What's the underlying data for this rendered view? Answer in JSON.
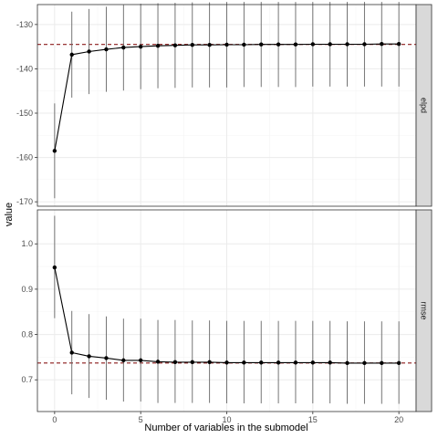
{
  "chart_data": [
    {
      "type": "line",
      "panel": "elpd",
      "strip_label": "elpd",
      "x": [
        0,
        1,
        2,
        3,
        4,
        5,
        6,
        7,
        8,
        9,
        10,
        11,
        12,
        13,
        14,
        15,
        16,
        17,
        18,
        19,
        20
      ],
      "y": [
        -158.5,
        -136.8,
        -136.1,
        -135.6,
        -135.2,
        -135.0,
        -134.8,
        -134.7,
        -134.6,
        -134.6,
        -134.55,
        -134.55,
        -134.5,
        -134.5,
        -134.5,
        -134.45,
        -134.45,
        -134.45,
        -134.45,
        -134.4,
        -134.4
      ],
      "lower": [
        -169.2,
        -146.5,
        -145.7,
        -145.2,
        -144.9,
        -144.6,
        -144.4,
        -144.3,
        -144.2,
        -144.2,
        -144.2,
        -144.1,
        -144.1,
        -144.1,
        -144.1,
        -144.0,
        -144.0,
        -144.0,
        -144.0,
        -144.0,
        -144.0
      ],
      "upper": [
        -147.8,
        -127.1,
        -126.5,
        -126.0,
        -125.6,
        -125.3,
        -125.2,
        -125.1,
        -125.0,
        -125.0,
        -124.9,
        -124.9,
        -124.9,
        -124.9,
        -124.9,
        -124.9,
        -124.9,
        -124.9,
        -124.9,
        -124.9,
        -124.9
      ],
      "reference": -134.5,
      "ylim": [
        -171,
        -125.5
      ],
      "yticks": [
        -170,
        -160,
        -150,
        -140,
        -130
      ],
      "xlim": [
        -1,
        21
      ],
      "xticks": [
        0,
        5,
        10,
        15,
        20
      ],
      "grid": true
    },
    {
      "type": "line",
      "panel": "rmse",
      "strip_label": "rmse",
      "x": [
        0,
        1,
        2,
        3,
        4,
        5,
        6,
        7,
        8,
        9,
        10,
        11,
        12,
        13,
        14,
        15,
        16,
        17,
        18,
        19,
        20
      ],
      "y": [
        0.948,
        0.76,
        0.752,
        0.748,
        0.743,
        0.743,
        0.74,
        0.739,
        0.739,
        0.739,
        0.738,
        0.738,
        0.738,
        0.738,
        0.738,
        0.738,
        0.738,
        0.737,
        0.737,
        0.737,
        0.737
      ],
      "lower": [
        0.836,
        0.668,
        0.66,
        0.656,
        0.652,
        0.652,
        0.649,
        0.649,
        0.649,
        0.649,
        0.648,
        0.648,
        0.648,
        0.648,
        0.648,
        0.648,
        0.648,
        0.647,
        0.647,
        0.647,
        0.647
      ],
      "upper": [
        1.062,
        0.852,
        0.845,
        0.84,
        0.835,
        0.835,
        0.832,
        0.832,
        0.831,
        0.831,
        0.83,
        0.83,
        0.83,
        0.83,
        0.83,
        0.83,
        0.83,
        0.829,
        0.829,
        0.829,
        0.829
      ],
      "reference": 0.737,
      "ylim": [
        0.63,
        1.075
      ],
      "yticks": [
        0.7,
        0.8,
        0.9,
        1.0
      ],
      "ytick_labels": [
        "0.7",
        "0.8",
        "0.9",
        "1.0"
      ],
      "xlim": [
        -1,
        21
      ],
      "xticks": [
        0,
        5,
        10,
        15,
        20
      ],
      "grid": true
    }
  ],
  "xlabel": "Number of variables in the submodel",
  "ylabel": "value",
  "colors": {
    "line": "#000000",
    "errorbar": "#666666",
    "reference": "#8b1a1a",
    "grid_major": "#ebebeb",
    "grid_minor": "#f5f5f5",
    "strip_fill": "#d9d9d9",
    "panel_border": "#333333"
  }
}
